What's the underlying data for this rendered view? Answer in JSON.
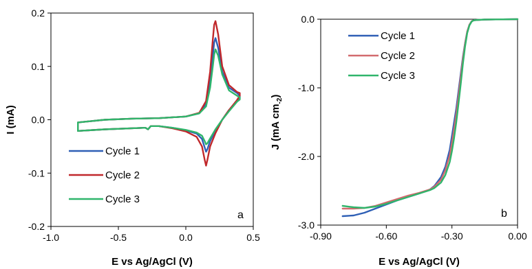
{
  "chart_data": [
    {
      "type": "line",
      "panel_letter": "a",
      "xlabel": "E vs Ag/AgCl (V)",
      "ylabel": "I (mA)",
      "xlim": [
        -1.0,
        0.5
      ],
      "ylim": [
        -0.2,
        0.2
      ],
      "xticks": [
        "-1.0",
        "-0.5",
        "0.0",
        "0.5"
      ],
      "yticks": [
        "0.2",
        "0.1",
        "0.0",
        "-0.1",
        "-0.2"
      ],
      "grid": false,
      "legend_position": "bottom-left",
      "series": [
        {
          "name": "Cycle 1",
          "color": "#2e5fb5",
          "x": [
            -0.8,
            -0.6,
            -0.4,
            -0.2,
            0.0,
            0.1,
            0.15,
            0.18,
            0.2,
            0.21,
            0.22,
            0.24,
            0.27,
            0.32,
            0.38,
            0.4,
            0.4,
            0.38,
            0.32,
            0.27,
            0.22,
            0.18,
            0.16,
            0.15,
            0.14,
            0.12,
            0.08,
            0.0,
            -0.1,
            -0.2,
            -0.26,
            -0.28,
            -0.3,
            -0.4,
            -0.6,
            -0.8,
            -0.8
          ],
          "y": [
            -0.005,
            0.0,
            0.002,
            0.003,
            0.006,
            0.012,
            0.03,
            0.07,
            0.12,
            0.145,
            0.153,
            0.135,
            0.09,
            0.06,
            0.05,
            0.045,
            0.04,
            0.036,
            0.018,
            0.0,
            -0.02,
            -0.04,
            -0.055,
            -0.06,
            -0.052,
            -0.036,
            -0.026,
            -0.02,
            -0.015,
            -0.012,
            -0.012,
            -0.018,
            -0.015,
            -0.016,
            -0.018,
            -0.021,
            -0.005
          ]
        },
        {
          "name": "Cycle 2",
          "color": "#c0282b",
          "x": [
            -0.8,
            -0.6,
            -0.4,
            -0.2,
            0.0,
            0.1,
            0.15,
            0.18,
            0.2,
            0.21,
            0.22,
            0.24,
            0.27,
            0.32,
            0.38,
            0.4,
            0.4,
            0.38,
            0.32,
            0.27,
            0.22,
            0.18,
            0.16,
            0.15,
            0.14,
            0.12,
            0.08,
            0.0,
            -0.1,
            -0.2,
            -0.26,
            -0.28,
            -0.3,
            -0.4,
            -0.6,
            -0.8,
            -0.8
          ],
          "y": [
            -0.005,
            0.0,
            0.002,
            0.003,
            0.006,
            0.013,
            0.035,
            0.09,
            0.15,
            0.178,
            0.185,
            0.16,
            0.1,
            0.065,
            0.052,
            0.05,
            0.045,
            0.037,
            0.018,
            0.0,
            -0.025,
            -0.05,
            -0.075,
            -0.086,
            -0.075,
            -0.05,
            -0.032,
            -0.022,
            -0.016,
            -0.012,
            -0.012,
            -0.018,
            -0.015,
            -0.016,
            -0.018,
            -0.021,
            -0.005
          ]
        },
        {
          "name": "Cycle 3",
          "color": "#2fb56b",
          "x": [
            -0.8,
            -0.6,
            -0.4,
            -0.2,
            0.0,
            0.1,
            0.15,
            0.18,
            0.2,
            0.21,
            0.22,
            0.24,
            0.27,
            0.32,
            0.38,
            0.4,
            0.4,
            0.38,
            0.32,
            0.27,
            0.22,
            0.18,
            0.16,
            0.15,
            0.14,
            0.12,
            0.08,
            0.0,
            -0.1,
            -0.2,
            -0.26,
            -0.28,
            -0.3,
            -0.4,
            -0.6,
            -0.8,
            -0.8
          ],
          "y": [
            -0.005,
            0.0,
            0.002,
            0.003,
            0.006,
            0.012,
            0.025,
            0.06,
            0.1,
            0.122,
            0.132,
            0.12,
            0.085,
            0.055,
            0.045,
            0.042,
            0.038,
            0.034,
            0.016,
            0.0,
            -0.018,
            -0.035,
            -0.044,
            -0.046,
            -0.04,
            -0.03,
            -0.024,
            -0.019,
            -0.015,
            -0.012,
            -0.012,
            -0.018,
            -0.015,
            -0.016,
            -0.018,
            -0.021,
            -0.005
          ]
        }
      ]
    },
    {
      "type": "line",
      "panel_letter": "b",
      "xlabel": "E vs Ag/AgCl (V)",
      "ylabel": "J (mA cm",
      "ylabel_sub": "-2",
      "ylabel_close": ")",
      "xlim": [
        -0.9,
        0.0
      ],
      "ylim": [
        -3.0,
        0.0
      ],
      "xticks": [
        "-0.90",
        "-0.60",
        "-0.30",
        "0.00"
      ],
      "yticks": [
        "0.0",
        "-1.0",
        "-2.0",
        "-3.0"
      ],
      "grid": false,
      "legend_position": "top-left",
      "series": [
        {
          "name": "Cycle 1",
          "color": "#2e5fb5",
          "x": [
            -0.8,
            -0.75,
            -0.7,
            -0.65,
            -0.6,
            -0.55,
            -0.5,
            -0.45,
            -0.4,
            -0.38,
            -0.35,
            -0.33,
            -0.31,
            -0.3,
            -0.29,
            -0.28,
            -0.27,
            -0.26,
            -0.25,
            -0.24,
            -0.23,
            -0.22,
            -0.21,
            -0.2,
            -0.18,
            -0.15,
            -0.1,
            0.0
          ],
          "y": [
            -2.87,
            -2.86,
            -2.82,
            -2.76,
            -2.7,
            -2.64,
            -2.59,
            -2.54,
            -2.48,
            -2.43,
            -2.3,
            -2.15,
            -1.9,
            -1.7,
            -1.5,
            -1.3,
            -1.05,
            -0.8,
            -0.55,
            -0.35,
            -0.18,
            -0.08,
            -0.03,
            -0.015,
            -0.01,
            -0.005,
            -0.003,
            0.0
          ]
        },
        {
          "name": "Cycle 2",
          "color": "#d26a6e",
          "x": [
            -0.8,
            -0.75,
            -0.7,
            -0.65,
            -0.6,
            -0.55,
            -0.5,
            -0.45,
            -0.4,
            -0.38,
            -0.35,
            -0.33,
            -0.31,
            -0.3,
            -0.29,
            -0.28,
            -0.27,
            -0.26,
            -0.25,
            -0.24,
            -0.23,
            -0.22,
            -0.21,
            -0.2,
            -0.18,
            -0.15,
            -0.1,
            0.0
          ],
          "y": [
            -2.76,
            -2.76,
            -2.75,
            -2.72,
            -2.67,
            -2.62,
            -2.57,
            -2.53,
            -2.48,
            -2.44,
            -2.34,
            -2.2,
            -1.98,
            -1.8,
            -1.6,
            -1.38,
            -1.12,
            -0.85,
            -0.58,
            -0.36,
            -0.18,
            -0.08,
            -0.03,
            -0.015,
            -0.01,
            -0.005,
            -0.003,
            0.0
          ]
        },
        {
          "name": "Cycle 3",
          "color": "#2fb56b",
          "x": [
            -0.8,
            -0.75,
            -0.7,
            -0.65,
            -0.6,
            -0.55,
            -0.5,
            -0.45,
            -0.4,
            -0.38,
            -0.35,
            -0.33,
            -0.31,
            -0.3,
            -0.29,
            -0.28,
            -0.27,
            -0.26,
            -0.25,
            -0.24,
            -0.23,
            -0.22,
            -0.21,
            -0.2,
            -0.18,
            -0.15,
            -0.1,
            0.0
          ],
          "y": [
            -2.72,
            -2.74,
            -2.75,
            -2.73,
            -2.69,
            -2.64,
            -2.59,
            -2.54,
            -2.49,
            -2.46,
            -2.38,
            -2.27,
            -2.08,
            -1.92,
            -1.73,
            -1.5,
            -1.23,
            -0.95,
            -0.65,
            -0.4,
            -0.2,
            -0.09,
            -0.035,
            -0.015,
            -0.01,
            -0.005,
            -0.003,
            0.0
          ]
        }
      ]
    }
  ]
}
